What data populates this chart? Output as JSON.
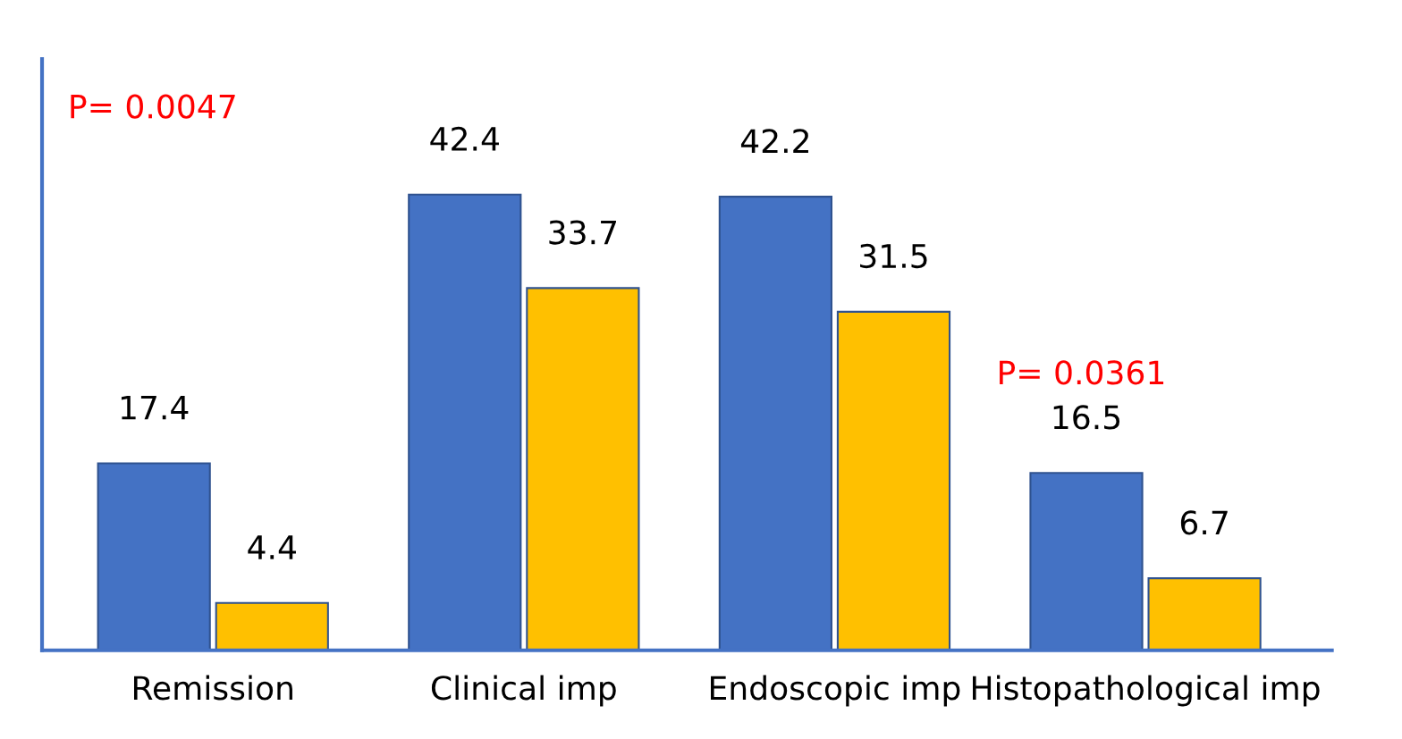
{
  "chart_data": {
    "type": "bar",
    "categories": [
      "Remission",
      "Clinical imp",
      "Endoscopic imp",
      "Histopathological imp"
    ],
    "series": [
      {
        "color": "#4472c4",
        "values": [
          17.4,
          42.4,
          42.2,
          16.5
        ]
      },
      {
        "color": "#ffc000",
        "values": [
          4.4,
          33.7,
          31.5,
          6.7
        ]
      }
    ],
    "data_labels": true,
    "annotations": [
      "P= 0.0047",
      "P= 0.0361"
    ],
    "grid": false,
    "legend": false
  }
}
